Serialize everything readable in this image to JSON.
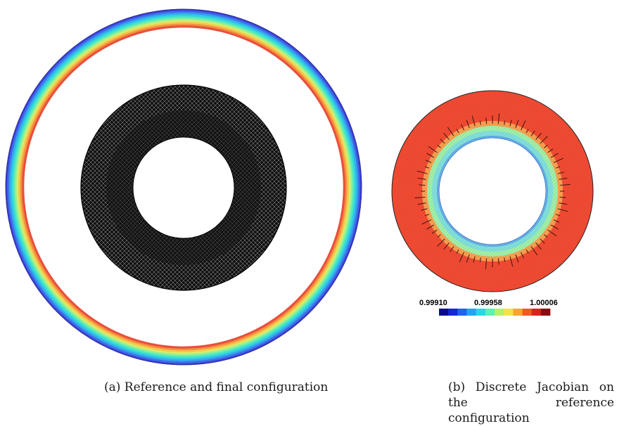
{
  "figure_a": {
    "caption": "(a) Reference and final configuration",
    "outer_ring_colors": [
      "#3b3ed6",
      "#3f6fe8",
      "#35a7ee",
      "#2fd3e0",
      "#4ee8c2",
      "#8ef09a",
      "#d6ec6b",
      "#f6c64c",
      "#f68f3f",
      "#e8503c"
    ],
    "mesh_color": "#111111"
  },
  "figure_b": {
    "caption": "(b) Discrete Jacobian on the reference configuration",
    "colorbar": {
      "min_label": "0.99910",
      "mid_label": "0.99958",
      "max_label": "1.00006",
      "colors": [
        "#0a0a8a",
        "#1526d6",
        "#1f62f0",
        "#22a4f2",
        "#27d8e6",
        "#5ef0b4",
        "#b6f06a",
        "#f2e346",
        "#f6a630",
        "#ee5a24",
        "#d8221c",
        "#8a0c12"
      ]
    },
    "band_colors": {
      "outer": "#f04a32",
      "outer_blend": "#f6a050",
      "middle": "#9ef0a8",
      "inner": "#7fe0dc",
      "innermost": "#5fa8e8"
    }
  }
}
